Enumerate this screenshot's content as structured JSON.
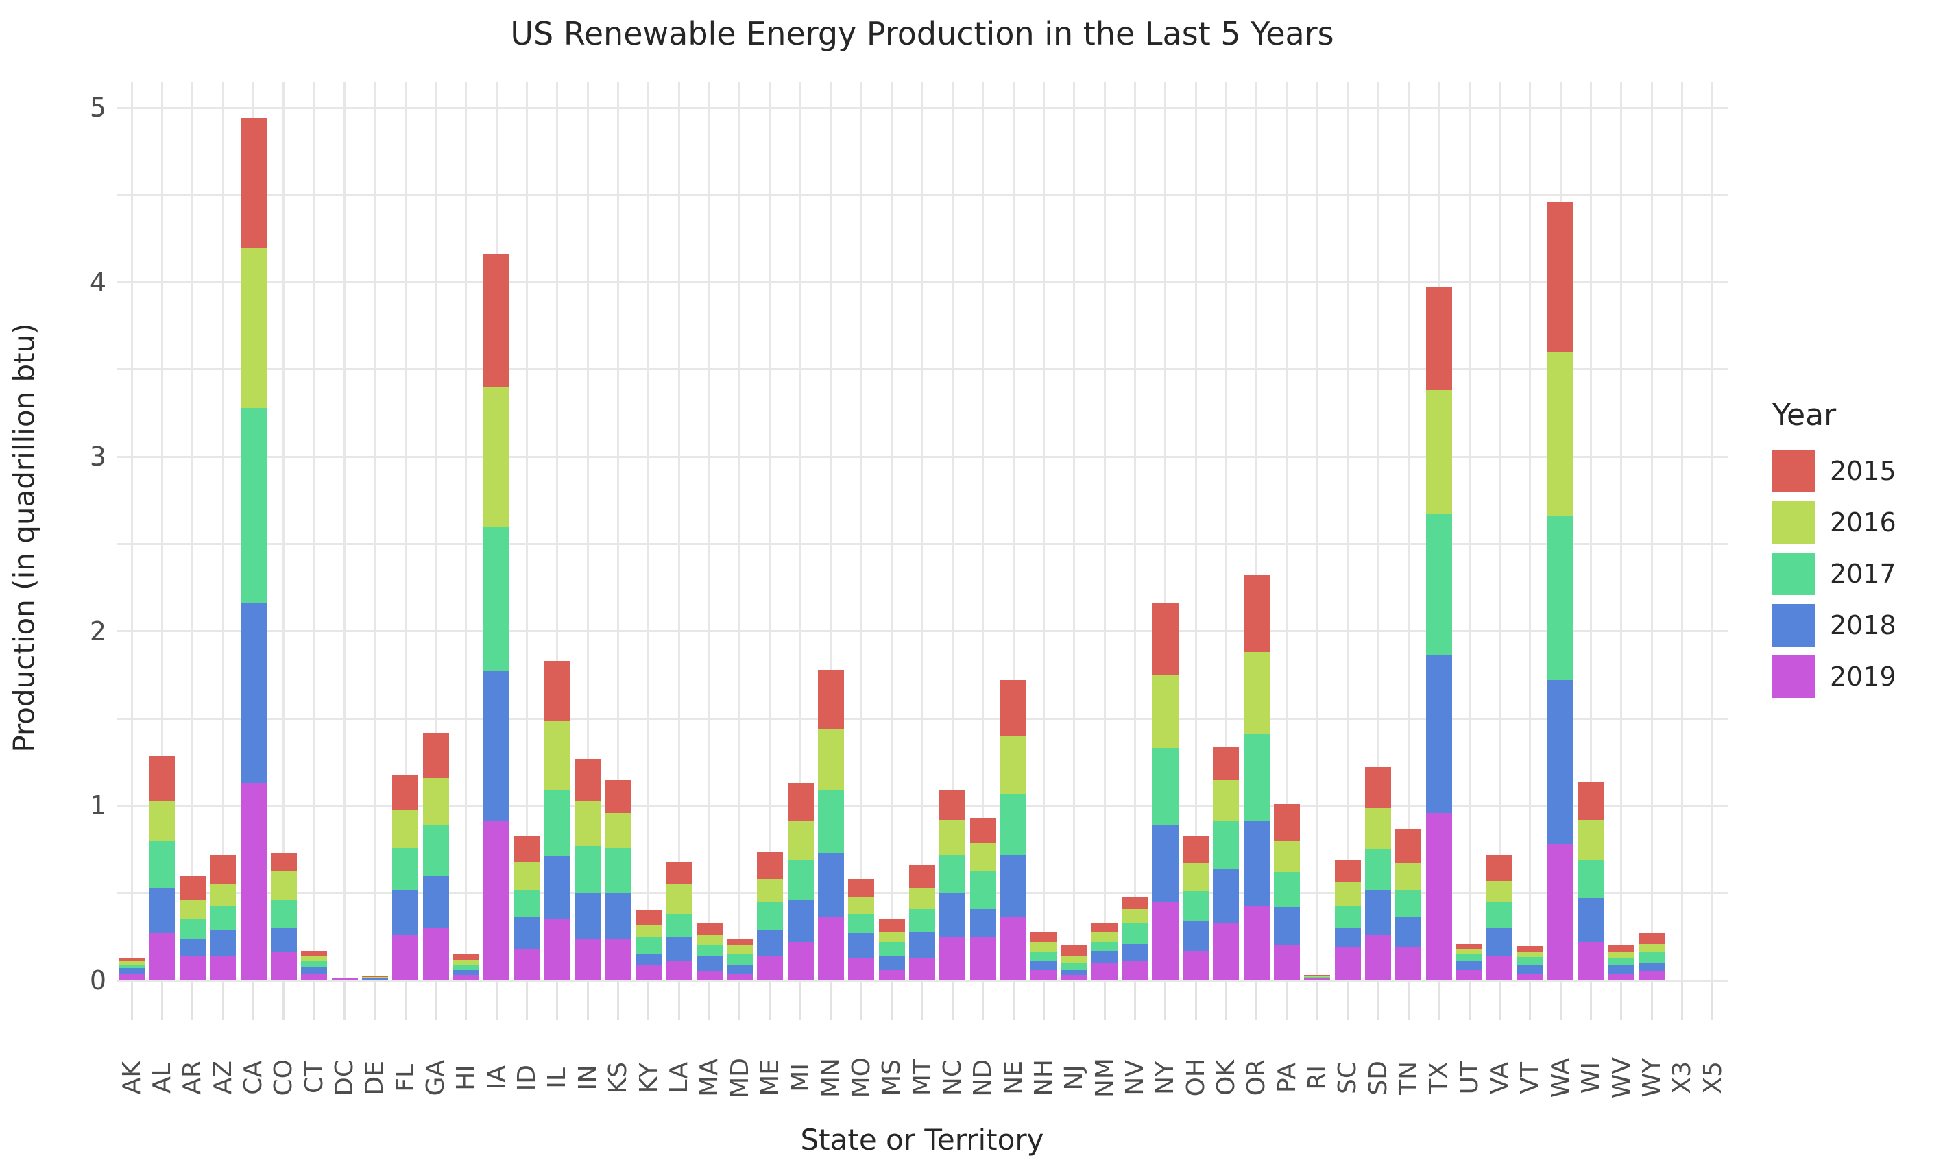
{
  "title": "US Renewable Energy Production in the Last 5 Years",
  "x_axis": {
    "label": "State or Territory"
  },
  "y_axis": {
    "label": "Production (in quadrillion btu)",
    "ticks": [
      "0",
      "1",
      "2",
      "3",
      "4",
      "5"
    ]
  },
  "legend": {
    "title": "Year",
    "entries": [
      {
        "label": "2015",
        "color": "#db5f57"
      },
      {
        "label": "2016",
        "color": "#b9db57"
      },
      {
        "label": "2017",
        "color": "#57db94"
      },
      {
        "label": "2018",
        "color": "#5784db"
      },
      {
        "label": "2019",
        "color": "#c957db"
      }
    ]
  },
  "chart_data": {
    "type": "bar",
    "stacked": true,
    "title": "US Renewable Energy Production in the Last 5 Years",
    "xlabel": "State or Territory",
    "ylabel": "Production (in quadrillion btu)",
    "ylim": [
      0,
      5.15
    ],
    "grid": true,
    "legend_position": "right",
    "categories": [
      "AK",
      "AL",
      "AR",
      "AZ",
      "CA",
      "CO",
      "CT",
      "DC",
      "DE",
      "FL",
      "GA",
      "HI",
      "IA",
      "ID",
      "IL",
      "IN",
      "KS",
      "KY",
      "LA",
      "MA",
      "MD",
      "ME",
      "MI",
      "MN",
      "MO",
      "MS",
      "MT",
      "NC",
      "ND",
      "NE",
      "NH",
      "NJ",
      "NM",
      "NV",
      "NY",
      "OH",
      "OK",
      "OR",
      "PA",
      "RI",
      "SC",
      "SD",
      "TN",
      "TX",
      "UT",
      "VA",
      "VT",
      "WA",
      "WI",
      "WV",
      "WY",
      "X3",
      "X5"
    ],
    "stack_order_bottom_to_top": [
      "2019",
      "2018",
      "2017",
      "2016",
      "2015"
    ],
    "series": [
      {
        "name": "2019",
        "color": "#c957db",
        "values": [
          0.04,
          0.27,
          0.14,
          0.14,
          1.13,
          0.16,
          0.04,
          0.01,
          0.005,
          0.26,
          0.3,
          0.03,
          0.91,
          0.18,
          0.35,
          0.24,
          0.24,
          0.09,
          0.11,
          0.05,
          0.04,
          0.14,
          0.22,
          0.36,
          0.13,
          0.06,
          0.13,
          0.25,
          0.25,
          0.36,
          0.06,
          0.03,
          0.1,
          0.11,
          0.45,
          0.17,
          0.33,
          0.43,
          0.2,
          0.01,
          0.19,
          0.26,
          0.19,
          0.96,
          0.06,
          0.14,
          0.04,
          0.78,
          0.22,
          0.04,
          0.05,
          0,
          0
        ]
      },
      {
        "name": "2018",
        "color": "#5784db",
        "values": [
          0.03,
          0.26,
          0.1,
          0.15,
          1.03,
          0.14,
          0.04,
          0.005,
          0.005,
          0.26,
          0.3,
          0.03,
          0.86,
          0.18,
          0.36,
          0.26,
          0.26,
          0.06,
          0.14,
          0.09,
          0.05,
          0.15,
          0.24,
          0.37,
          0.14,
          0.08,
          0.15,
          0.25,
          0.16,
          0.36,
          0.05,
          0.03,
          0.07,
          0.1,
          0.44,
          0.17,
          0.31,
          0.48,
          0.22,
          0.005,
          0.11,
          0.26,
          0.17,
          0.9,
          0.05,
          0.16,
          0.05,
          0.94,
          0.25,
          0.05,
          0.05,
          0,
          0
        ]
      },
      {
        "name": "2017",
        "color": "#57db94",
        "values": [
          0.02,
          0.27,
          0.11,
          0.14,
          1.12,
          0.16,
          0.03,
          0,
          0.005,
          0.24,
          0.29,
          0.03,
          0.83,
          0.16,
          0.38,
          0.27,
          0.26,
          0.1,
          0.13,
          0.06,
          0.06,
          0.16,
          0.23,
          0.36,
          0.11,
          0.08,
          0.13,
          0.22,
          0.22,
          0.35,
          0.05,
          0.04,
          0.05,
          0.12,
          0.44,
          0.17,
          0.27,
          0.5,
          0.2,
          0.005,
          0.13,
          0.23,
          0.16,
          0.81,
          0.04,
          0.15,
          0.045,
          0.94,
          0.22,
          0.04,
          0.06,
          0,
          0
        ]
      },
      {
        "name": "2016",
        "color": "#b9db57",
        "values": [
          0.02,
          0.23,
          0.11,
          0.12,
          0.92,
          0.17,
          0.03,
          0,
          0.005,
          0.22,
          0.27,
          0.03,
          0.8,
          0.16,
          0.4,
          0.26,
          0.2,
          0.07,
          0.17,
          0.06,
          0.05,
          0.13,
          0.22,
          0.35,
          0.1,
          0.06,
          0.12,
          0.2,
          0.16,
          0.33,
          0.06,
          0.04,
          0.06,
          0.08,
          0.42,
          0.16,
          0.24,
          0.47,
          0.18,
          0.005,
          0.13,
          0.24,
          0.15,
          0.71,
          0.03,
          0.12,
          0.03,
          0.94,
          0.23,
          0.03,
          0.05,
          0,
          0
        ]
      },
      {
        "name": "2015",
        "color": "#db5f57",
        "values": [
          0.02,
          0.26,
          0.14,
          0.17,
          0.74,
          0.1,
          0.03,
          0,
          0.005,
          0.2,
          0.26,
          0.03,
          0.76,
          0.15,
          0.34,
          0.24,
          0.19,
          0.08,
          0.13,
          0.07,
          0.04,
          0.16,
          0.22,
          0.34,
          0.1,
          0.07,
          0.13,
          0.17,
          0.14,
          0.32,
          0.06,
          0.06,
          0.05,
          0.07,
          0.41,
          0.16,
          0.19,
          0.44,
          0.21,
          0.005,
          0.13,
          0.23,
          0.2,
          0.59,
          0.03,
          0.15,
          0.03,
          0.86,
          0.22,
          0.04,
          0.06,
          0,
          0
        ]
      }
    ]
  }
}
